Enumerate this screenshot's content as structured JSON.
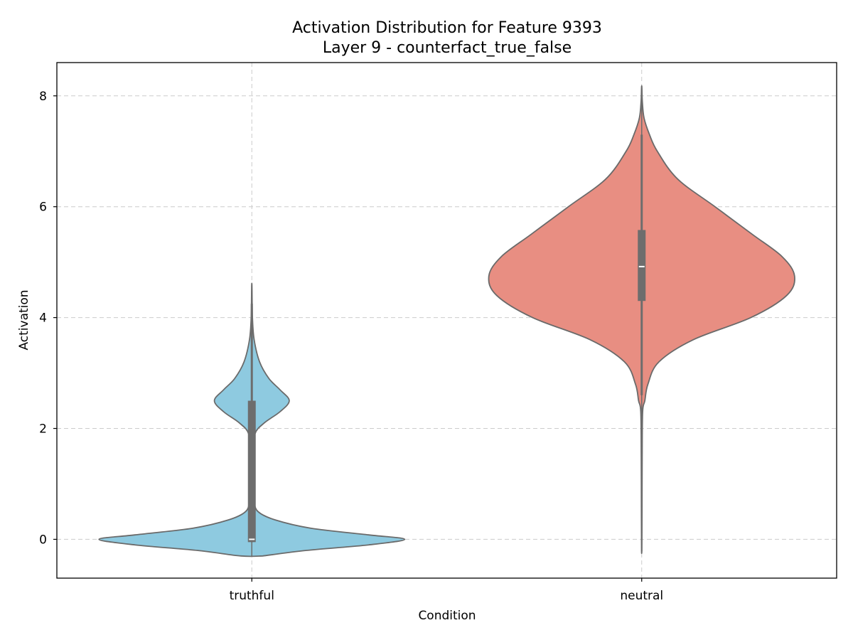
{
  "chart_data": {
    "type": "violin",
    "title": "Activation Distribution for Feature 9393",
    "subtitle": "Layer 9 - counterfact_true_false",
    "xlabel": "Condition",
    "ylabel": "Activation",
    "categories": [
      "truthful",
      "neutral"
    ],
    "ylim": [
      -0.7,
      8.6
    ],
    "yticks": [
      0,
      2,
      4,
      6,
      8
    ],
    "grid": true,
    "series": [
      {
        "category": "truthful",
        "color": "#8ecae0",
        "min": -0.3,
        "max": 4.55,
        "q1": -0.05,
        "median": 0.0,
        "q3": 2.5,
        "whisker_low": -0.05,
        "whisker_high": 4.25,
        "density": [
          [
            -0.3,
            0.07
          ],
          [
            -0.2,
            0.35
          ],
          [
            -0.1,
            0.75
          ],
          [
            0.0,
            0.98
          ],
          [
            0.08,
            0.75
          ],
          [
            0.2,
            0.38
          ],
          [
            0.35,
            0.15
          ],
          [
            0.5,
            0.04
          ],
          [
            0.7,
            0.015
          ],
          [
            1.0,
            0.01
          ],
          [
            1.5,
            0.01
          ],
          [
            1.9,
            0.02
          ],
          [
            2.1,
            0.08
          ],
          [
            2.3,
            0.18
          ],
          [
            2.5,
            0.24
          ],
          [
            2.7,
            0.18
          ],
          [
            2.9,
            0.11
          ],
          [
            3.2,
            0.05
          ],
          [
            3.6,
            0.015
          ],
          [
            4.0,
            0.004
          ],
          [
            4.55,
            0.001
          ]
        ]
      },
      {
        "category": "neutral",
        "color": "#e88e82",
        "min": -0.2,
        "max": 8.15,
        "q1": 4.3,
        "median": 4.92,
        "q3": 5.58,
        "whisker_low": 2.6,
        "whisker_high": 7.3,
        "density": [
          [
            -0.2,
            0.001
          ],
          [
            0.5,
            0.002
          ],
          [
            1.5,
            0.003
          ],
          [
            2.3,
            0.006
          ],
          [
            2.5,
            0.02
          ],
          [
            2.8,
            0.04
          ],
          [
            3.2,
            0.11
          ],
          [
            3.6,
            0.33
          ],
          [
            4.0,
            0.7
          ],
          [
            4.4,
            0.93
          ],
          [
            4.75,
            0.98
          ],
          [
            5.1,
            0.9
          ],
          [
            5.5,
            0.71
          ],
          [
            6.0,
            0.47
          ],
          [
            6.5,
            0.23
          ],
          [
            7.0,
            0.1
          ],
          [
            7.3,
            0.05
          ],
          [
            7.6,
            0.015
          ],
          [
            7.9,
            0.004
          ],
          [
            8.15,
            0.001
          ]
        ]
      }
    ]
  }
}
